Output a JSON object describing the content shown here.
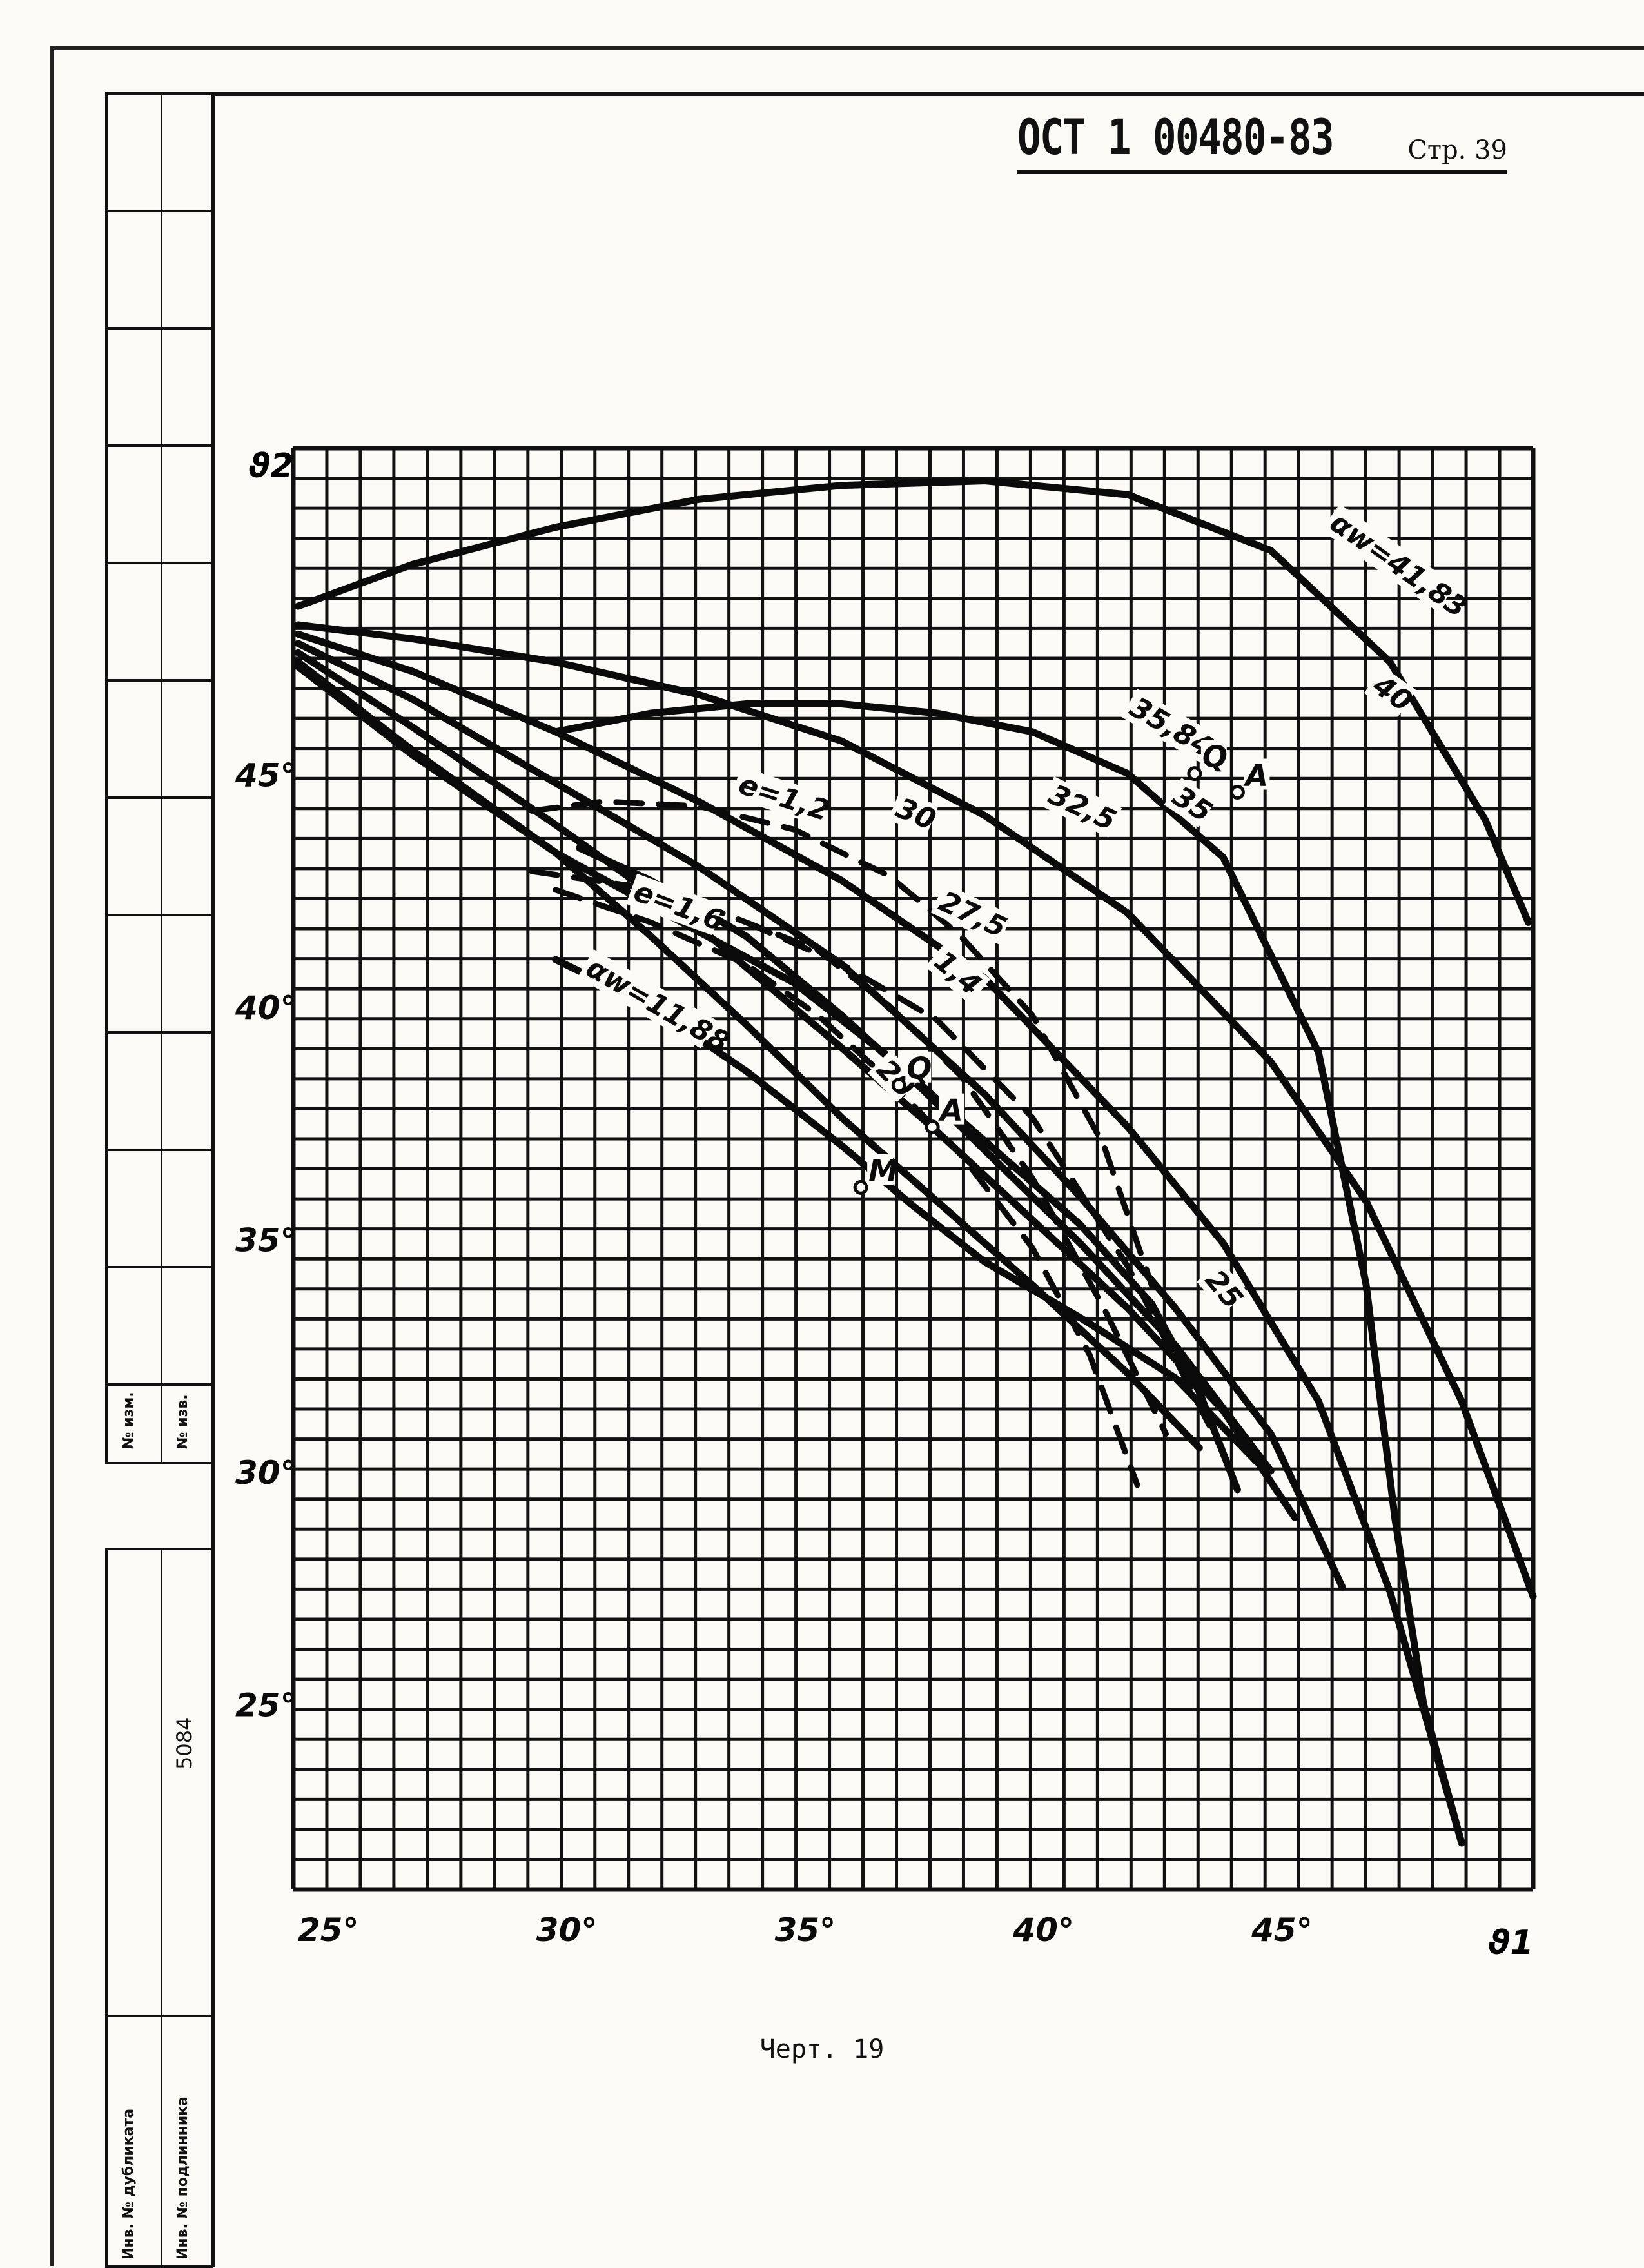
{
  "document": {
    "standard_code": "ОСТ 1 00480-83",
    "page_label": "Стр. 39",
    "caption": "Черт. 19",
    "stub_labels": [
      "№ изм.",
      "№ изв.",
      "5084",
      "Инв. № дубликата",
      "Инв. № подлинника"
    ]
  },
  "chart_data": {
    "type": "line",
    "xlabel": "ϑ1",
    "ylabel": "ϑ2",
    "xlim": [
      24.5,
      50.5
    ],
    "ylim": [
      21,
      52
    ],
    "x_ticks": [
      25,
      30,
      35,
      40,
      45
    ],
    "y_ticks": [
      25,
      30,
      35,
      40,
      45
    ],
    "x_tick_labels": [
      "25°",
      "30°",
      "35°",
      "40°",
      "45°"
    ],
    "y_tick_labels": [
      "25°",
      "30°",
      "35°",
      "40°",
      "45°"
    ],
    "grid": true,
    "series": [
      {
        "name": "αw=41,83",
        "style": "solid",
        "x": [
          24.6,
          27,
          30,
          33,
          36,
          39,
          42,
          45,
          47.5,
          49.5,
          50.4
        ],
        "y": [
          48.6,
          49.5,
          50.3,
          50.9,
          51.2,
          51.3,
          51.0,
          49.8,
          47.4,
          44.0,
          41.8
        ]
      },
      {
        "name": "40",
        "style": "solid",
        "x": [
          24.6,
          27,
          30,
          33,
          36,
          39,
          42,
          45,
          47,
          49,
          50.5
        ],
        "y": [
          48.2,
          47.9,
          47.4,
          46.7,
          45.7,
          44.1,
          42.0,
          38.8,
          35.8,
          31.5,
          27.3
        ]
      },
      {
        "name": "35,84",
        "style": "solid",
        "x": [
          30,
          32,
          34,
          36,
          38,
          40,
          42,
          44,
          46,
          47,
          47.6,
          48.2,
          49
        ],
        "y": [
          45.9,
          46.3,
          46.5,
          46.5,
          46.3,
          45.9,
          45.0,
          43.2,
          39.0,
          34.0,
          29.0,
          25.0,
          22.0
        ]
      },
      {
        "name": "35",
        "style": "solid",
        "x": [
          24.6,
          27,
          30,
          33,
          36,
          39,
          42,
          44,
          46,
          47.5,
          49
        ],
        "y": [
          48.0,
          47.2,
          45.9,
          44.4,
          42.7,
          40.6,
          37.4,
          34.9,
          31.5,
          27.4,
          22.0
        ]
      },
      {
        "name": "32,5",
        "style": "solid",
        "x": [
          24.6,
          27,
          30,
          33,
          36,
          39,
          41,
          43,
          45,
          46.5
        ],
        "y": [
          47.8,
          46.6,
          44.8,
          43.0,
          40.9,
          38.1,
          35.9,
          33.5,
          30.8,
          27.5
        ]
      },
      {
        "name": "30",
        "style": "solid",
        "x": [
          24.6,
          27,
          30,
          33,
          36,
          38,
          40,
          42,
          44,
          45.5
        ],
        "y": [
          47.6,
          46.0,
          43.9,
          41.7,
          39.1,
          37.3,
          35.4,
          33.5,
          31.3,
          29.0
        ]
      },
      {
        "name": "27,5",
        "style": "solid",
        "x": [
          24.6,
          27,
          30,
          32,
          34,
          36,
          38,
          40,
          42,
          43.5
        ],
        "y": [
          47.4,
          45.5,
          43.3,
          41.5,
          39.6,
          37.6,
          35.8,
          34.0,
          32.1,
          30.5
        ]
      },
      {
        "name": "25",
        "style": "solid",
        "x": [
          24.6,
          27,
          30,
          33,
          35,
          37,
          39,
          41,
          42.5,
          43.5,
          44.3
        ],
        "y": [
          47.3,
          45.4,
          43.3,
          41.6,
          40.5,
          38.9,
          37.1,
          35.3,
          33.6,
          31.7,
          29.6
        ]
      },
      {
        "name": "20",
        "style": "solid",
        "x": [
          30.5,
          32,
          34,
          36,
          37.5,
          39,
          41,
          43,
          45
        ],
        "y": [
          43.4,
          42.7,
          41.5,
          39.8,
          38.4,
          36.9,
          34.9,
          32.7,
          30.0
        ]
      },
      {
        "name": "αw=11,88",
        "style": "solid",
        "x": [
          30,
          32,
          34,
          36,
          37.5,
          39,
          41,
          43,
          44.7
        ],
        "y": [
          41.0,
          40.0,
          38.6,
          37.0,
          35.7,
          34.5,
          33.3,
          32.0,
          30.2
        ]
      },
      {
        "name": "e=1,2",
        "style": "dashed",
        "x": [
          29.5,
          31,
          33,
          35,
          37,
          38.5,
          40,
          41.5,
          42.5
        ],
        "y": [
          44.2,
          44.4,
          44.3,
          43.8,
          42.8,
          41.5,
          39.8,
          37.0,
          34.0
        ]
      },
      {
        "name": "1,4",
        "style": "dashed",
        "x": [
          29.5,
          31.5,
          33.5,
          35.5,
          37,
          38.5,
          40,
          41.5,
          42.8
        ],
        "y": [
          42.9,
          42.6,
          42.0,
          41.2,
          40.0,
          38.5,
          36.3,
          33.5,
          30.8
        ]
      },
      {
        "name": "e=1,6",
        "style": "dashed",
        "x": [
          30,
          32,
          34,
          35.5,
          37,
          38.5,
          40,
          41.2,
          42.2
        ],
        "y": [
          42.5,
          41.8,
          40.9,
          39.8,
          38.4,
          36.8,
          34.8,
          32.5,
          29.7
        ]
      },
      {
        "name": "",
        "style": "dashed",
        "x": [
          34,
          36,
          38,
          40,
          42,
          44
        ],
        "y": [
          41.8,
          40.9,
          39.7,
          37.6,
          34.4,
          30.4
        ]
      }
    ],
    "curve_labels": [
      {
        "text": "αw=41,83",
        "x": 46.2,
        "y": 50.3,
        "angle": 35
      },
      {
        "text": "40",
        "x": 47.1,
        "y": 46.8,
        "angle": 35
      },
      {
        "text": "35,84",
        "x": 42.0,
        "y": 46.3,
        "angle": 30
      },
      {
        "text": "35",
        "x": 42.9,
        "y": 44.4,
        "angle": 33
      },
      {
        "text": "32,5",
        "x": 40.3,
        "y": 44.4,
        "angle": 25
      },
      {
        "text": "30",
        "x": 37.1,
        "y": 44.1,
        "angle": 22
      },
      {
        "text": "27,5",
        "x": 38.0,
        "y": 42.1,
        "angle": 25
      },
      {
        "text": "1,4",
        "x": 37.9,
        "y": 40.9,
        "angle": 40
      },
      {
        "text": "20",
        "x": 36.7,
        "y": 38.6,
        "angle": 45
      },
      {
        "text": "25",
        "x": 43.6,
        "y": 34.1,
        "angle": 50
      },
      {
        "text": "e=1,2",
        "x": 33.8,
        "y": 44.6,
        "angle": 18
      },
      {
        "text": "e=1,6",
        "x": 31.6,
        "y": 42.3,
        "angle": 20
      },
      {
        "text": "αw=11,88",
        "x": 30.6,
        "y": 40.7,
        "angle": 30
      }
    ],
    "points": [
      {
        "text": "Q",
        "x": 43.4,
        "y": 45.0
      },
      {
        "text": "A",
        "x": 44.3,
        "y": 44.6
      },
      {
        "text": "Q",
        "x": 37.2,
        "y": 38.3
      },
      {
        "text": "A",
        "x": 37.9,
        "y": 37.4
      },
      {
        "text": "M",
        "x": 36.4,
        "y": 36.1
      }
    ]
  }
}
